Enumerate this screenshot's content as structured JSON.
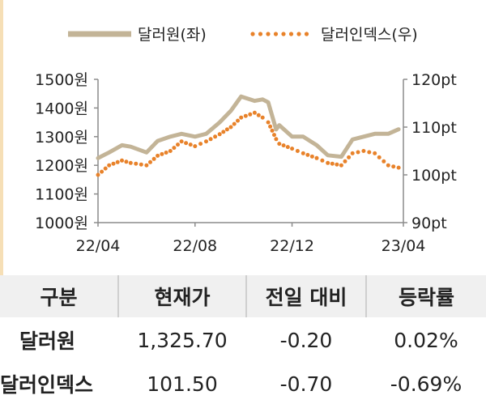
{
  "chart_data": {
    "type": "line",
    "legend": {
      "position": "top",
      "entries": [
        {
          "label": "달러원(좌)",
          "color": "#c3b497",
          "style": "solid"
        },
        {
          "label": "달러인덱스(우)",
          "color": "#e8822a",
          "style": "dotted"
        }
      ]
    },
    "x_ticks": [
      "22/04",
      "22/08",
      "22/12",
      "23/04"
    ],
    "y_left": {
      "ylim": [
        1000,
        1500
      ],
      "ticks": [
        "1000원",
        "1100원",
        "1200원",
        "1300원",
        "1400원",
        "1500원"
      ]
    },
    "y_right": {
      "ylim": [
        90,
        120
      ],
      "ticks": [
        "90pt",
        "100pt",
        "110pt",
        "120pt"
      ]
    },
    "grid": false,
    "series": [
      {
        "name": "달러원(좌)",
        "axis": "left",
        "color": "#c3b497",
        "x": [
          "2022-04-01",
          "2022-04-15",
          "2022-05-01",
          "2022-05-12",
          "2022-06-01",
          "2022-06-15",
          "2022-07-01",
          "2022-07-15",
          "2022-08-01",
          "2022-08-15",
          "2022-09-01",
          "2022-09-15",
          "2022-09-28",
          "2022-10-15",
          "2022-10-25",
          "2022-11-01",
          "2022-11-11",
          "2022-11-15",
          "2022-12-01",
          "2022-12-15",
          "2023-01-01",
          "2023-01-15",
          "2023-02-01",
          "2023-02-15",
          "2023-03-01",
          "2023-03-15",
          "2023-04-01",
          "2023-04-14"
        ],
        "values": [
          1225,
          1245,
          1270,
          1265,
          1245,
          1285,
          1300,
          1310,
          1300,
          1310,
          1350,
          1390,
          1440,
          1425,
          1430,
          1420,
          1325,
          1340,
          1300,
          1300,
          1270,
          1235,
          1230,
          1290,
          1300,
          1310,
          1310,
          1325.7
        ]
      },
      {
        "name": "달러인덱스(우)",
        "axis": "right",
        "color": "#e8822a",
        "x": [
          "2022-04-01",
          "2022-04-15",
          "2022-05-01",
          "2022-05-12",
          "2022-06-01",
          "2022-06-15",
          "2022-07-01",
          "2022-07-15",
          "2022-08-01",
          "2022-08-15",
          "2022-09-01",
          "2022-09-15",
          "2022-09-28",
          "2022-10-15",
          "2022-10-25",
          "2022-11-01",
          "2022-11-11",
          "2022-11-15",
          "2022-12-01",
          "2022-12-15",
          "2023-01-01",
          "2023-01-15",
          "2023-02-01",
          "2023-02-15",
          "2023-03-01",
          "2023-03-15",
          "2023-04-01",
          "2023-04-14"
        ],
        "values": [
          100,
          102,
          103,
          102.5,
          102,
          104,
          105,
          107,
          106,
          107,
          108.5,
          110,
          112,
          113,
          112,
          111,
          107.5,
          106.5,
          105.5,
          104.5,
          103.5,
          102.5,
          102,
          104.5,
          105,
          104.5,
          102,
          101.5
        ]
      }
    ]
  },
  "table": {
    "headers": [
      "구분",
      "현재가",
      "전일 대비",
      "등락률"
    ],
    "rows": [
      {
        "name": "달러원",
        "price": "1,325.70",
        "change": "-0.20",
        "rate": "0.02%"
      },
      {
        "name": "달러인덱스",
        "price": "101.50",
        "change": "-0.70",
        "rate": "-0.69%"
      }
    ]
  }
}
